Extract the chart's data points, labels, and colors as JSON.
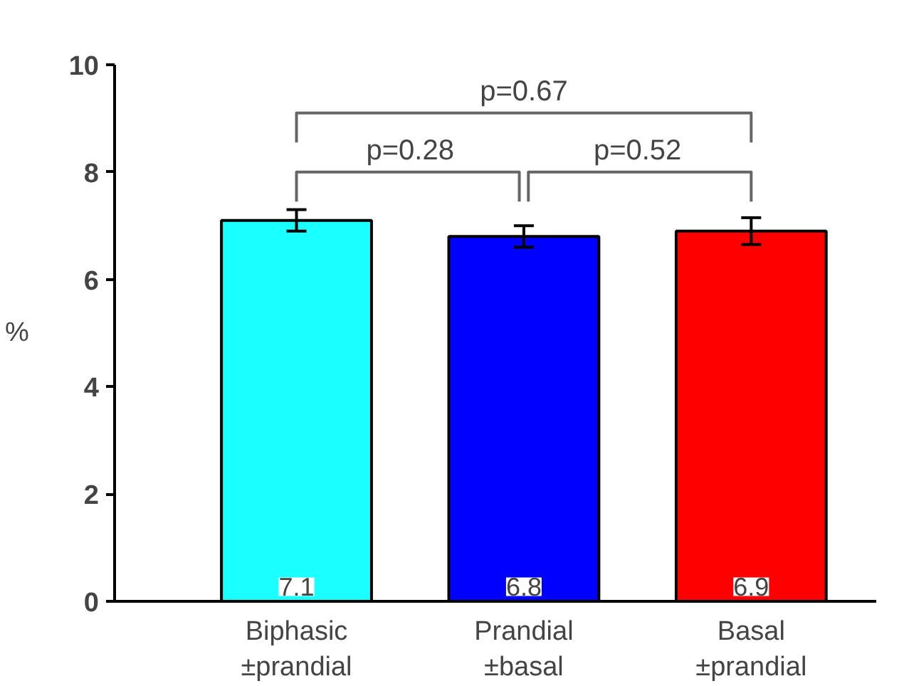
{
  "chart_data": {
    "type": "bar",
    "ylabel": "%",
    "categories": [
      "Biphasic ±prandial",
      "Prandial ±basal",
      "Basal ±prandial"
    ],
    "values": [
      7.1,
      6.8,
      6.9
    ],
    "colors": [
      "#1affff",
      "#0000ff",
      "#ff0000"
    ],
    "errors": [
      0.2,
      0.2,
      0.25
    ],
    "data_labels": true,
    "ylim": [
      0,
      10
    ],
    "yticks": [
      0,
      2,
      4,
      6,
      8,
      10
    ],
    "grid": false,
    "annotations": [
      "p=0.28",
      "p=0.52",
      "p=0.67"
    ]
  }
}
